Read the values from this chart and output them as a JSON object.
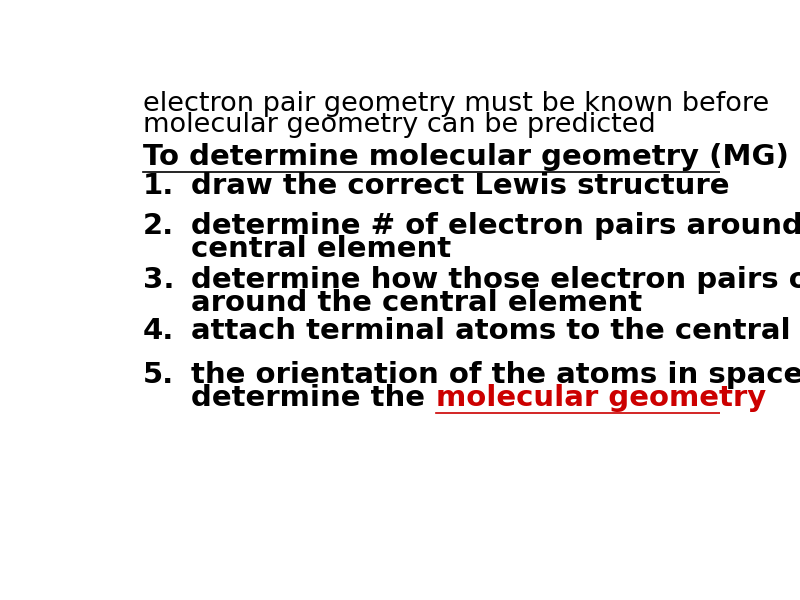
{
  "background_color": "#ffffff",
  "header_line1": "electron pair geometry must be known before",
  "header_line2": "molecular geometry can be predicted",
  "header_fontsize": 19.5,
  "subheader_text": "To determine molecular geometry (MG)",
  "subheader_fontsize": 21,
  "item_fontsize": 21,
  "number_fontsize": 21,
  "black": "#000000",
  "red": "#cc0000",
  "items": [
    {
      "num": "1.",
      "lines": [
        "draw the correct Lewis structure"
      ],
      "has_red": false
    },
    {
      "num": "2.",
      "lines": [
        "determine # of electron pairs around the",
        "central element"
      ],
      "has_red": false
    },
    {
      "num": "3.",
      "lines": [
        "determine how those electron pairs orient",
        "around the central element"
      ],
      "has_red": false
    },
    {
      "num": "4.",
      "lines": [
        "attach terminal atoms to the central element"
      ],
      "has_red": false
    },
    {
      "num": "5.",
      "lines": [
        "the orientation of the atoms in space",
        "determine the "
      ],
      "has_red": true,
      "red_text": "molecular geometry"
    }
  ]
}
